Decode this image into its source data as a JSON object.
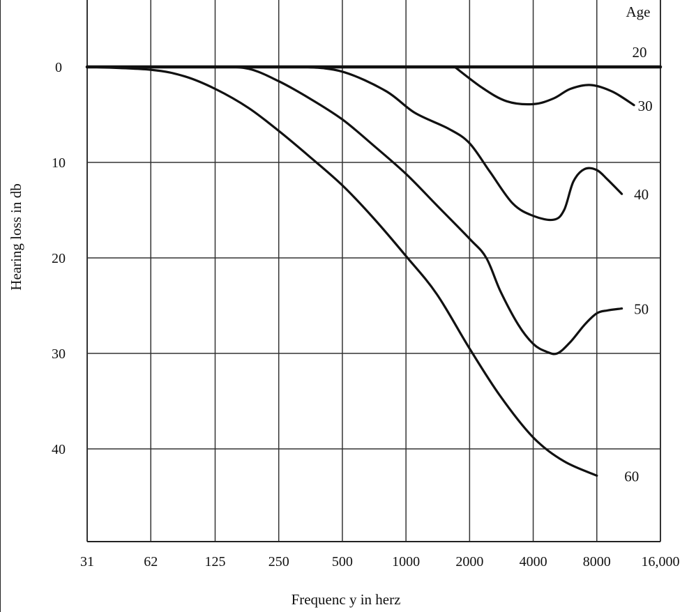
{
  "chart_data": {
    "type": "line",
    "title": "",
    "xlabel": "Frequenc y in herz",
    "ylabel": "Hearing loss in db",
    "x_scale": "log2",
    "x_ticks": [
      31,
      62,
      125,
      250,
      500,
      1000,
      2000,
      4000,
      8000,
      16000
    ],
    "x_tick_labels": [
      "31",
      "62",
      "125",
      "250",
      "500",
      "1000",
      "2000",
      "4000",
      "8000",
      "16,000"
    ],
    "y_ticks": [
      0,
      10,
      20,
      30,
      40
    ],
    "y_tick_labels": [
      "0",
      "10",
      "20",
      "30",
      "40"
    ],
    "xlim": [
      31,
      16000
    ],
    "ylim": [
      -7,
      50
    ],
    "y_inverted": true,
    "grid": true,
    "legend_title": "Age",
    "series": [
      {
        "name": "20",
        "x": [
          31,
          16000
        ],
        "y": [
          0,
          0
        ]
      },
      {
        "name": "30",
        "x": [
          1700,
          2300,
          3000,
          4000,
          5000,
          6000,
          7500,
          9500,
          12000
        ],
        "y": [
          0,
          2.2,
          3.6,
          3.9,
          3.3,
          2.3,
          1.9,
          2.6,
          4.0
        ]
      },
      {
        "name": "40",
        "x": [
          31,
          62,
          200,
          320,
          500,
          800,
          1100,
          1600,
          2000,
          2500,
          3200,
          4000,
          5000,
          5600,
          6200,
          7000,
          8000,
          9000,
          10500
        ],
        "y": [
          0,
          0,
          0,
          0,
          0.5,
          2.5,
          4.8,
          6.5,
          8.0,
          11.0,
          14.3,
          15.6,
          16.0,
          15.0,
          12.0,
          10.7,
          10.8,
          11.8,
          13.3
        ]
      },
      {
        "name": "50",
        "x": [
          31,
          62,
          125,
          180,
          250,
          350,
          500,
          700,
          1000,
          1400,
          2000,
          2400,
          2800,
          3400,
          4000,
          4600,
          5200,
          6000,
          7000,
          8000,
          9000,
          10500
        ],
        "y": [
          0,
          0,
          0,
          0.2,
          1.5,
          3.3,
          5.5,
          8.2,
          11.2,
          14.5,
          18.0,
          20.0,
          23.5,
          27.0,
          29.0,
          29.8,
          30.0,
          28.8,
          27.0,
          25.8,
          25.5,
          25.3
        ]
      },
      {
        "name": "60",
        "x": [
          31,
          62,
          90,
          125,
          180,
          250,
          350,
          500,
          700,
          1000,
          1400,
          2000,
          2800,
          4000,
          5600,
          8000
        ],
        "y": [
          0,
          0.3,
          1.0,
          2.3,
          4.3,
          6.7,
          9.4,
          12.4,
          15.8,
          19.8,
          23.8,
          29.5,
          34.5,
          38.8,
          41.3,
          42.8
        ]
      }
    ]
  }
}
